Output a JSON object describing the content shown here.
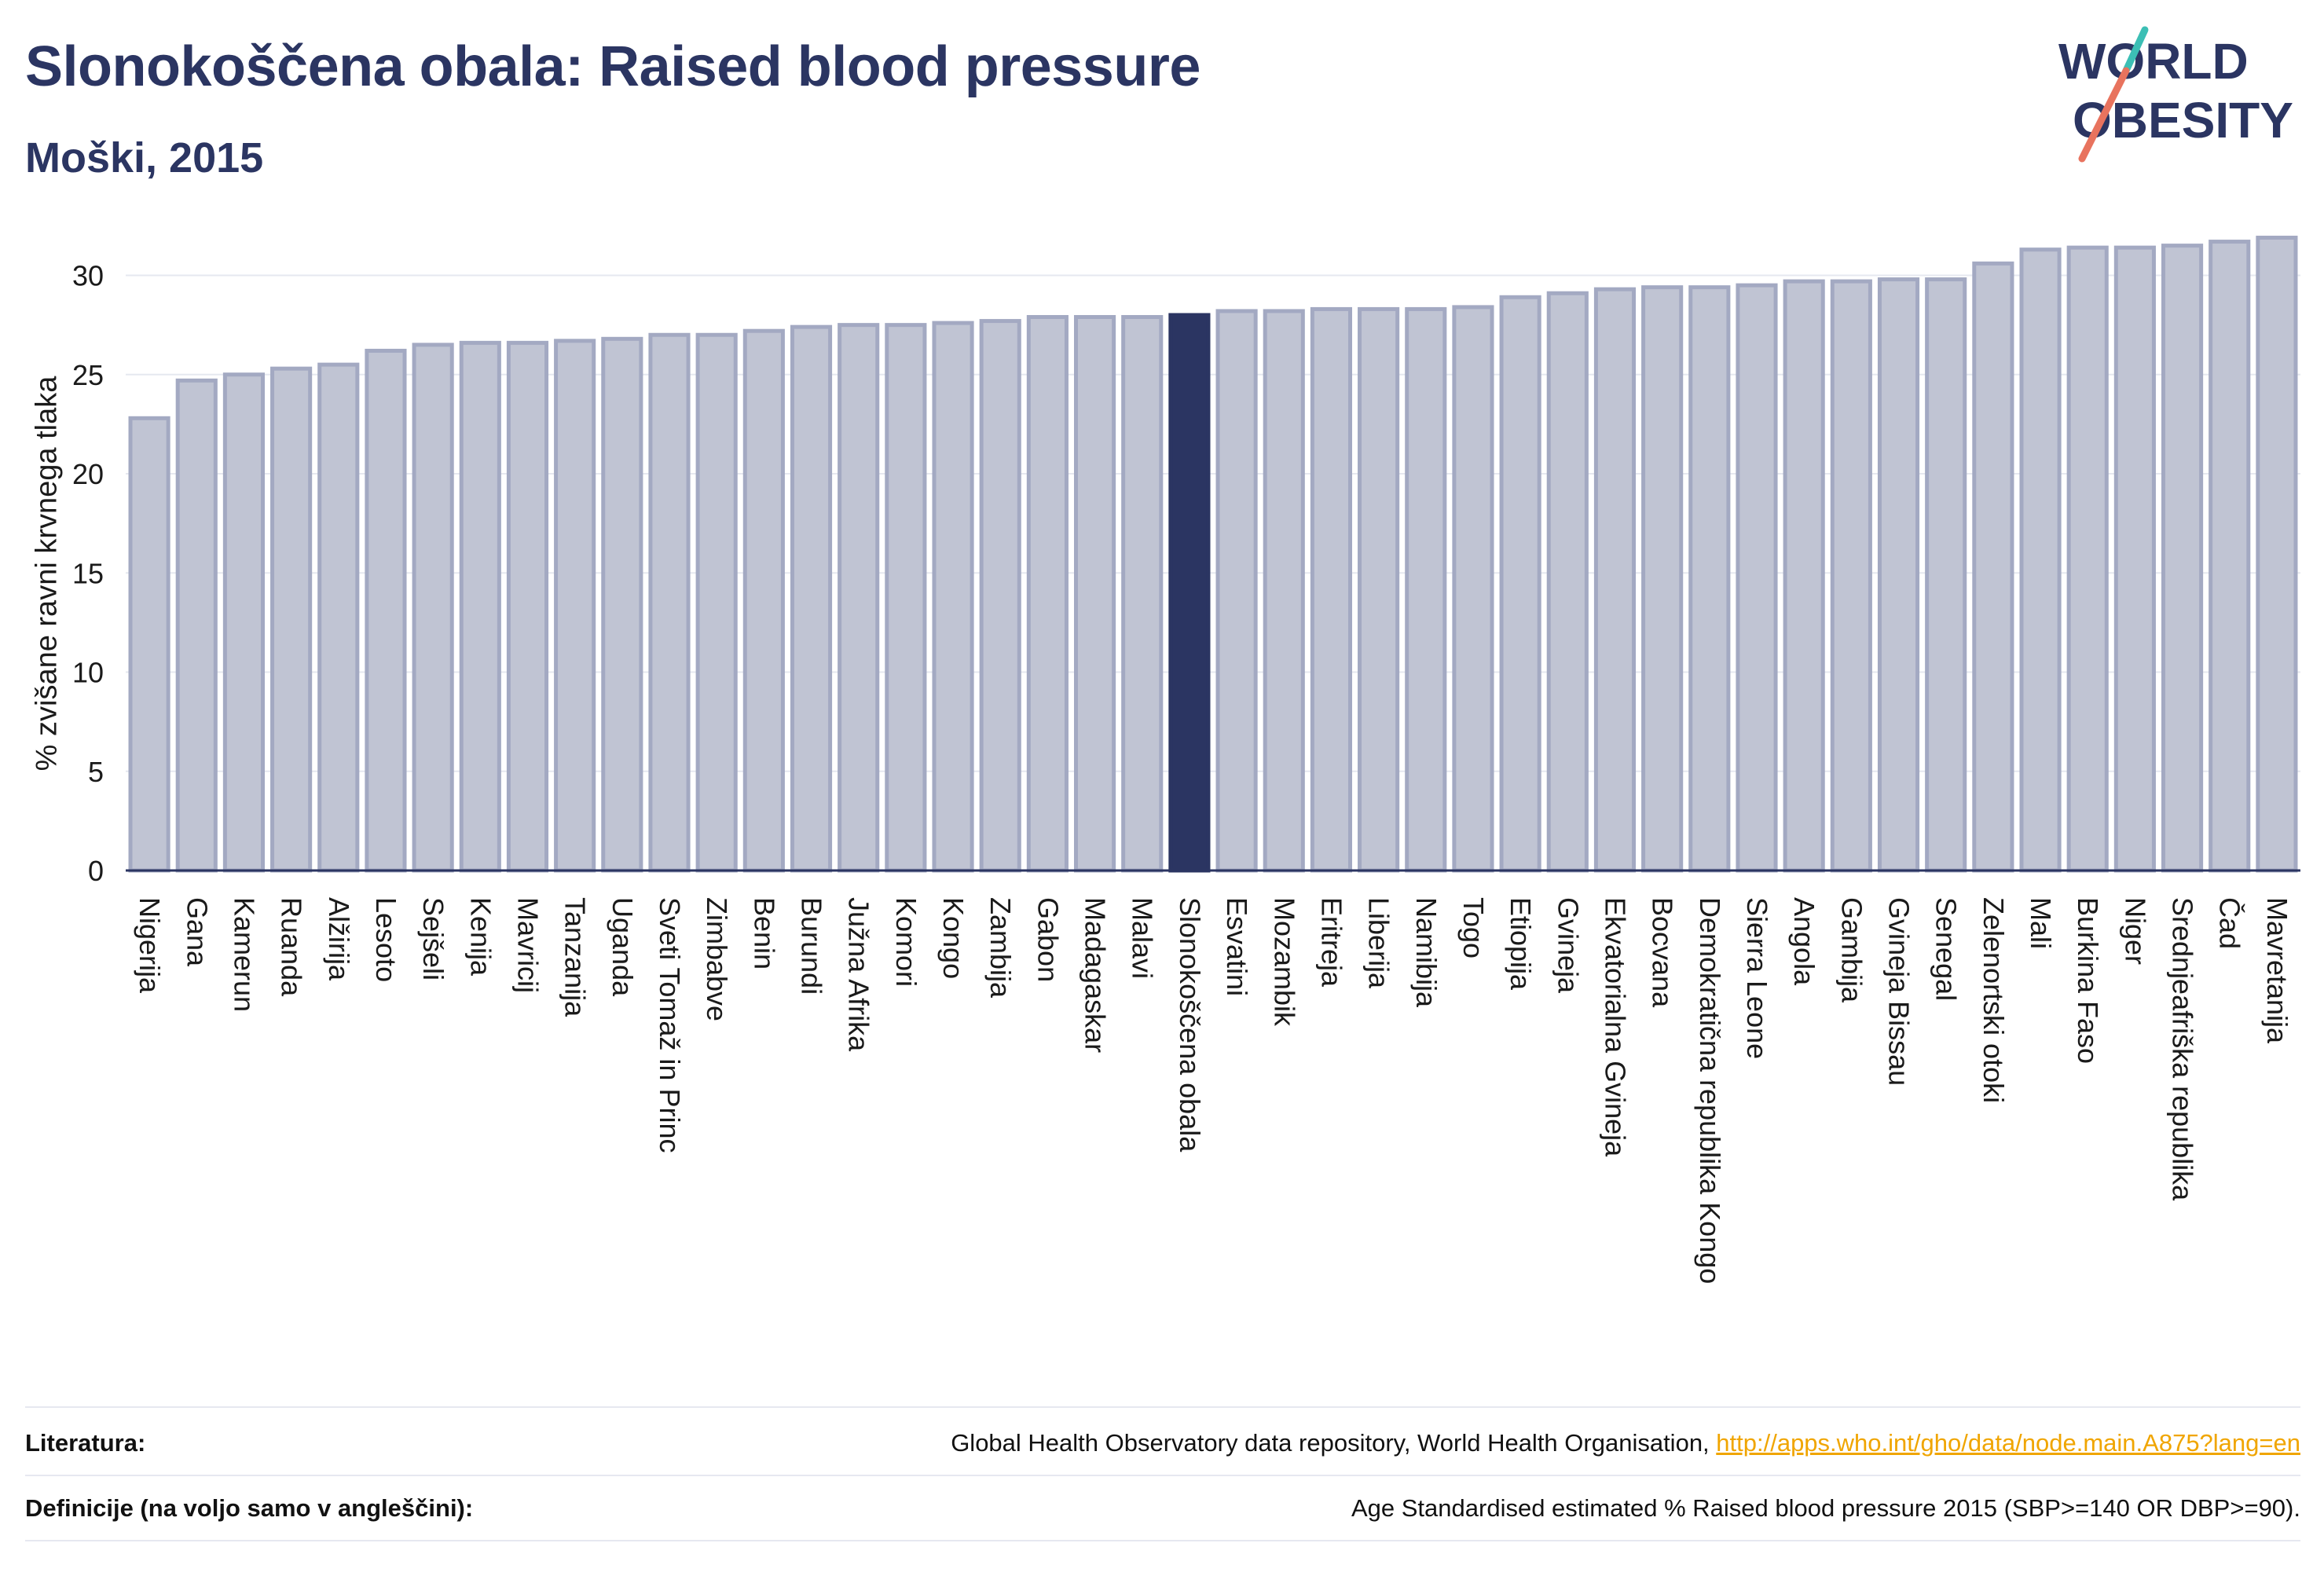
{
  "title": "Slonokoščena obala: Raised blood pressure",
  "subtitle": "Moški, 2015",
  "logo": {
    "line1": "WORLD",
    "line2": "OBESITY"
  },
  "colors": {
    "highlight": "#2b3562",
    "bar": "#c0c4d3",
    "bar_border": "#a3a9c2",
    "title": "#2b3562",
    "link": "#f0a500"
  },
  "chart_data": {
    "type": "bar",
    "ylabel": "% zvišane ravni krvnega tlaka",
    "ylim": [
      0,
      32
    ],
    "yticks": [
      0,
      5,
      10,
      15,
      20,
      25,
      30
    ],
    "grid": true,
    "highlight": "Slonokoščena obala",
    "categories": [
      "Nigerija",
      "Gana",
      "Kamerun",
      "Ruanda",
      "Alžirija",
      "Lesoto",
      "Sejšeli",
      "Kenija",
      "Mavricij",
      "Tanzanija",
      "Uganda",
      "Sveti Tomaž in Princ",
      "Zimbabve",
      "Benin",
      "Burundi",
      "Južna Afrika",
      "Komori",
      "Kongo",
      "Zambija",
      "Gabon",
      "Madagaskar",
      "Malavi",
      "Slonokoščena obala",
      "Esvatini",
      "Mozambik",
      "Eritreja",
      "Liberija",
      "Namibija",
      "Togo",
      "Etiopija",
      "Gvineja",
      "Ekvatorialna Gvineja",
      "Bocvana",
      "Demokratična republika Kongo",
      "Sierra Leone",
      "Angola",
      "Gambija",
      "Gvineja Bissau",
      "Senegal",
      "Zelenortski otoki",
      "Mali",
      "Burkina Faso",
      "Niger",
      "Srednjeafriška republika",
      "Čad",
      "Mavretanija"
    ],
    "values": [
      22.8,
      24.7,
      25.0,
      25.3,
      25.5,
      26.2,
      26.5,
      26.6,
      26.6,
      26.7,
      26.8,
      27.0,
      27.0,
      27.2,
      27.4,
      27.5,
      27.5,
      27.6,
      27.7,
      27.9,
      27.9,
      27.9,
      28.0,
      28.2,
      28.2,
      28.3,
      28.3,
      28.3,
      28.4,
      28.9,
      29.1,
      29.3,
      29.4,
      29.4,
      29.5,
      29.7,
      29.7,
      29.8,
      29.8,
      30.6,
      31.3,
      31.4,
      31.4,
      31.5,
      31.7,
      31.9
    ]
  },
  "footer": {
    "ref_label": "Literatura:",
    "ref_text": "Global Health Observatory data repository, World Health Organisation, ",
    "ref_link": "http://apps.who.int/gho/data/node.main.A875?lang=en",
    "def_label": "Definicije (na voljo samo v angleščini):",
    "def_text": "Age Standardised estimated % Raised blood pressure 2015 (SBP>=140 OR DBP>=90)."
  }
}
